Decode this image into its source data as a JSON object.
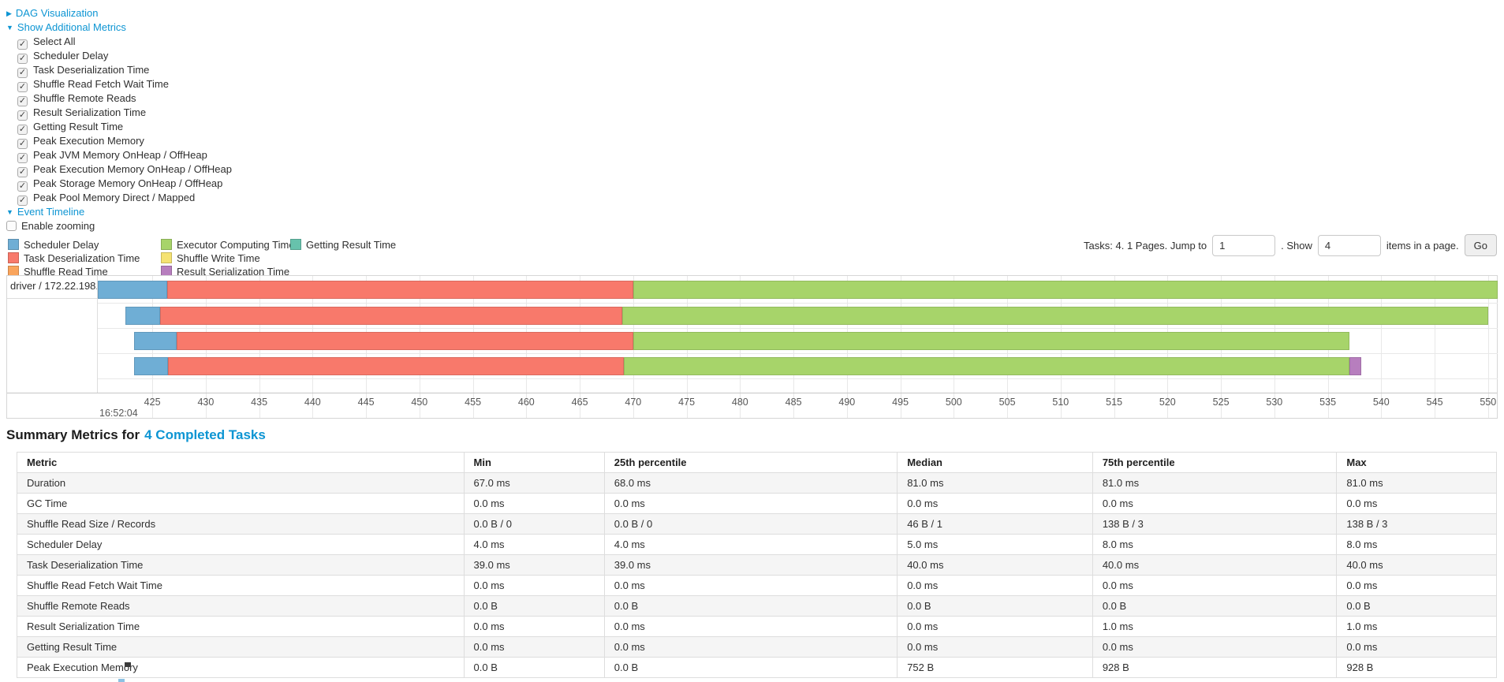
{
  "sections": {
    "dag_label": "DAG Visualization",
    "metrics_label": "Show Additional Metrics",
    "timeline_label": "Event Timeline",
    "enable_zooming_label": "Enable zooming"
  },
  "metric_checkboxes": [
    {
      "label": "Select All",
      "checked": true
    },
    {
      "label": "Scheduler Delay",
      "checked": true
    },
    {
      "label": "Task Deserialization Time",
      "checked": true
    },
    {
      "label": "Shuffle Read Fetch Wait Time",
      "checked": true
    },
    {
      "label": "Shuffle Remote Reads",
      "checked": true
    },
    {
      "label": "Result Serialization Time",
      "checked": true
    },
    {
      "label": "Getting Result Time",
      "checked": true
    },
    {
      "label": "Peak Execution Memory",
      "checked": true
    },
    {
      "label": "Peak JVM Memory OnHeap / OffHeap",
      "checked": true
    },
    {
      "label": "Peak Execution Memory OnHeap / OffHeap",
      "checked": true
    },
    {
      "label": "Peak Storage Memory OnHeap / OffHeap",
      "checked": true
    },
    {
      "label": "Peak Pool Memory Direct / Mapped",
      "checked": true
    }
  ],
  "enable_zooming_checked": false,
  "pagination": {
    "tasks_text": "Tasks: 4. 1 Pages. Jump to",
    "jump_value": "1",
    "show_text": ". Show",
    "show_value": "4",
    "items_text": "items in a page.",
    "go_label": "Go"
  },
  "legend": {
    "items": [
      {
        "key": "scheduler-delay",
        "label": "Scheduler Delay",
        "color": "#6FAED5",
        "col": 0,
        "row": 0
      },
      {
        "key": "task-deserialization",
        "label": "Task Deserialization Time",
        "color": "#F8796B",
        "col": 0,
        "row": 1
      },
      {
        "key": "shuffle-read",
        "label": "Shuffle Read Time",
        "color": "#F9A45C",
        "col": 0,
        "row": 2
      },
      {
        "key": "executor-computing",
        "label": "Executor Computing Time",
        "color": "#A7D46A",
        "col": 1,
        "row": 0
      },
      {
        "key": "shuffle-write",
        "label": "Shuffle Write Time",
        "color": "#F5E272",
        "col": 1,
        "row": 1
      },
      {
        "key": "result-serialization",
        "label": "Result Serialization Time",
        "color": "#B77EBE",
        "col": 1,
        "row": 2
      },
      {
        "key": "getting-result",
        "label": "Getting Result Time",
        "color": "#67C2AC",
        "col": 2,
        "row": 0
      }
    ]
  },
  "chart_data": {
    "type": "timeline-gantt",
    "group_label": "driver / 172.22.198.104",
    "x_axis": {
      "min": 419.9,
      "max": 550.9,
      "tick_step": 5,
      "ticks": [
        425,
        430,
        435,
        440,
        445,
        450,
        455,
        460,
        465,
        470,
        475,
        480,
        485,
        490,
        495,
        500,
        505,
        510,
        515,
        520,
        525,
        530,
        535,
        540,
        545,
        550
      ],
      "major_label": "16:52:04"
    },
    "tasks": [
      {
        "segments": [
          {
            "type": "scheduler-delay",
            "start": 419.9,
            "end": 426.4
          },
          {
            "type": "task-deserialization",
            "start": 426.4,
            "end": 470.0
          },
          {
            "type": "executor-computing",
            "start": 470.0,
            "end": 551.5
          }
        ]
      },
      {
        "segments": [
          {
            "type": "scheduler-delay",
            "start": 422.5,
            "end": 425.7
          },
          {
            "type": "task-deserialization",
            "start": 425.7,
            "end": 469.0
          },
          {
            "type": "executor-computing",
            "start": 469.0,
            "end": 550.0
          }
        ]
      },
      {
        "segments": [
          {
            "type": "scheduler-delay",
            "start": 423.3,
            "end": 427.3
          },
          {
            "type": "task-deserialization",
            "start": 427.3,
            "end": 470.0
          },
          {
            "type": "executor-computing",
            "start": 470.0,
            "end": 537.0
          }
        ]
      },
      {
        "segments": [
          {
            "type": "scheduler-delay",
            "start": 423.3,
            "end": 426.5
          },
          {
            "type": "task-deserialization",
            "start": 426.5,
            "end": 469.1
          },
          {
            "type": "executor-computing",
            "start": 469.1,
            "end": 537.0
          },
          {
            "type": "result-serialization",
            "start": 537.0,
            "end": 538.1
          }
        ]
      }
    ]
  },
  "summary": {
    "title": "Summary Metrics for",
    "title_link": "4 Completed Tasks",
    "table": {
      "headers": [
        "Metric",
        "Min",
        "25th percentile",
        "Median",
        "75th percentile",
        "Max"
      ],
      "rows": [
        [
          "Duration",
          "67.0 ms",
          "68.0 ms",
          "81.0 ms",
          "81.0 ms",
          "81.0 ms"
        ],
        [
          "GC Time",
          "0.0 ms",
          "0.0 ms",
          "0.0 ms",
          "0.0 ms",
          "0.0 ms"
        ],
        [
          "Shuffle Read Size / Records",
          "0.0 B / 0",
          "0.0 B / 0",
          "46 B / 1",
          "138 B / 3",
          "138 B / 3"
        ],
        [
          "Scheduler Delay",
          "4.0 ms",
          "4.0 ms",
          "5.0 ms",
          "8.0 ms",
          "8.0 ms"
        ],
        [
          "Task Deserialization Time",
          "39.0 ms",
          "39.0 ms",
          "40.0 ms",
          "40.0 ms",
          "40.0 ms"
        ],
        [
          "Shuffle Read Fetch Wait Time",
          "0.0 ms",
          "0.0 ms",
          "0.0 ms",
          "0.0 ms",
          "0.0 ms"
        ],
        [
          "Shuffle Remote Reads",
          "0.0 B",
          "0.0 B",
          "0.0 B",
          "0.0 B",
          "0.0 B"
        ],
        [
          "Result Serialization Time",
          "0.0 ms",
          "0.0 ms",
          "0.0 ms",
          "1.0 ms",
          "1.0 ms"
        ],
        [
          "Getting Result Time",
          "0.0 ms",
          "0.0 ms",
          "0.0 ms",
          "0.0 ms",
          "0.0 ms"
        ],
        [
          "Peak Execution Memory",
          "0.0 B",
          "0.0 B",
          "752 B",
          "928 B",
          "928 B"
        ]
      ]
    }
  }
}
